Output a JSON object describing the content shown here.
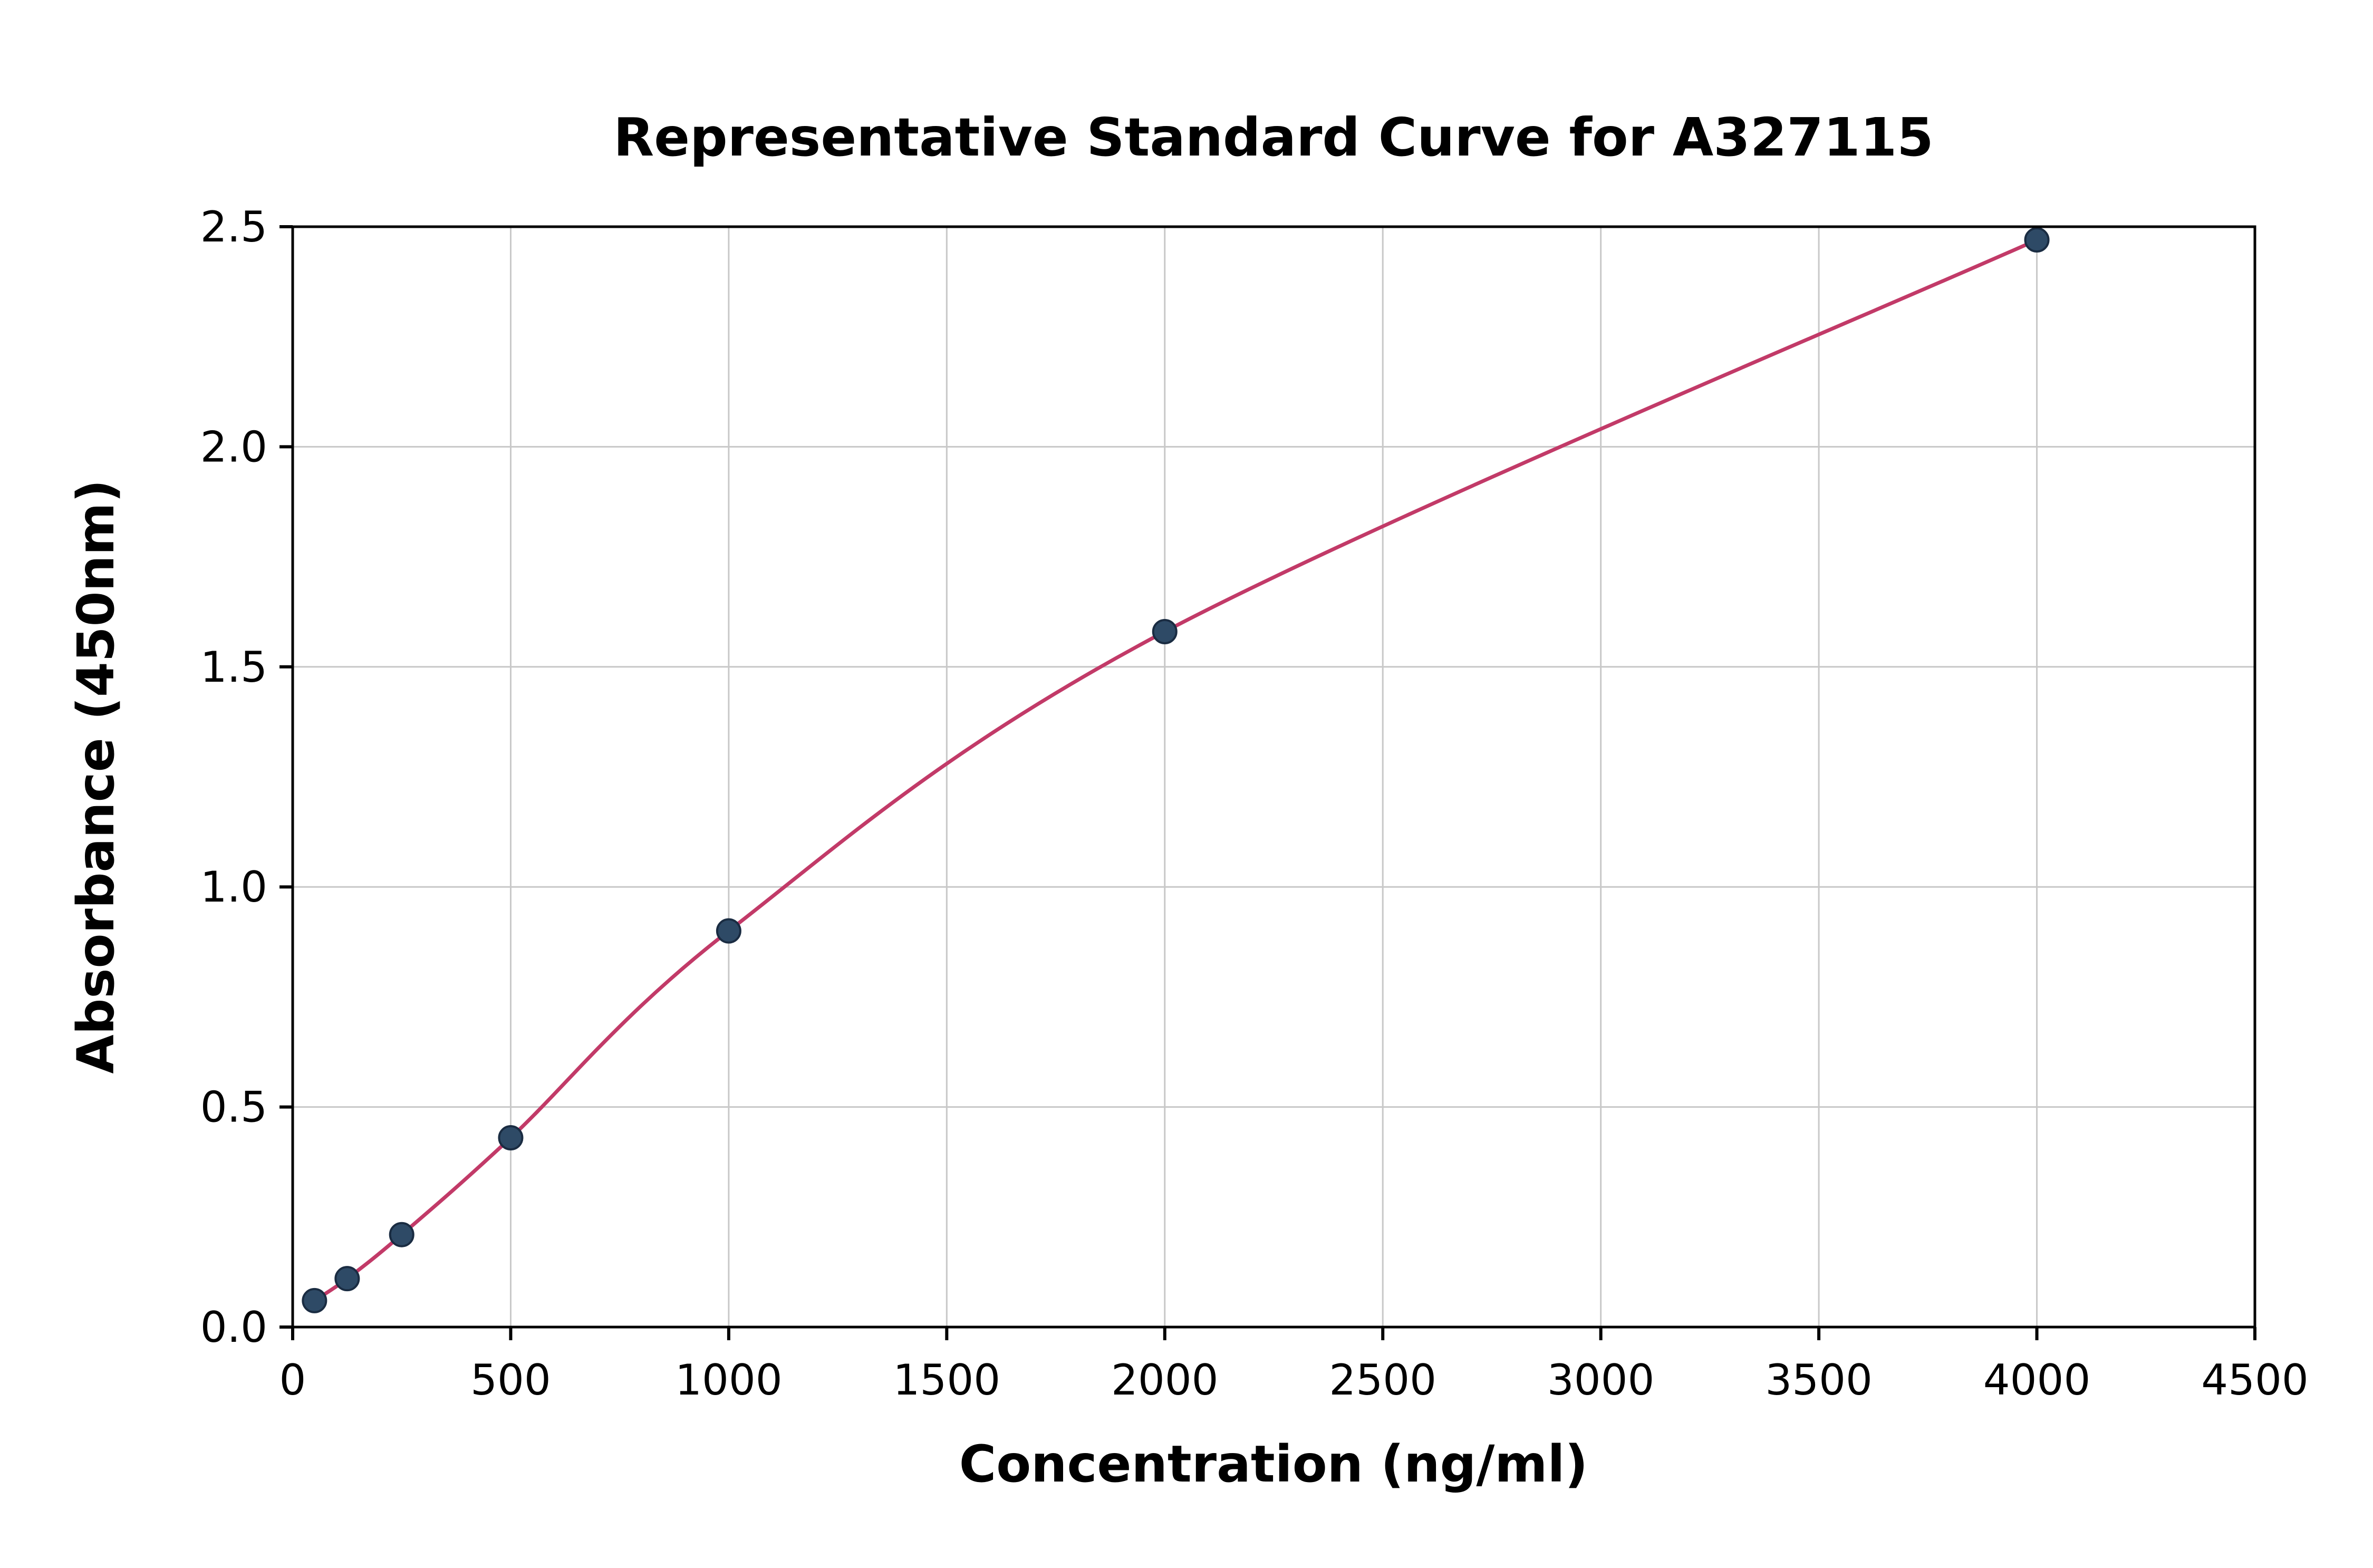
{
  "chart": {
    "title": "Representative Standard Curve for A327115",
    "xlabel": "Concentration (ng/ml)",
    "ylabel": "Absorbance (450nm)"
  },
  "chart_data": {
    "type": "scatter",
    "title": "Representative Standard Curve for A327115",
    "xlabel": "Concentration (ng/ml)",
    "ylabel": "Absorbance (450nm)",
    "x": [
      50,
      125,
      250,
      500,
      1000,
      2000,
      4000
    ],
    "y": [
      0.06,
      0.11,
      0.21,
      0.43,
      0.9,
      1.58,
      2.47
    ],
    "xlim": [
      0,
      4500
    ],
    "ylim": [
      0,
      2.5
    ],
    "xticks": [
      0,
      500,
      1000,
      1500,
      2000,
      2500,
      3000,
      3500,
      4000,
      4500
    ],
    "yticks": [
      0.0,
      0.5,
      1.0,
      1.5,
      2.0,
      2.5
    ],
    "grid": true,
    "legend_position": "none",
    "line_style": "smooth-curve-through-points",
    "colors": {
      "marker_fill": "#2e4a66",
      "marker_edge": "#1a2c42",
      "line": "#c23a68",
      "grid": "#c8c8c8",
      "axis": "#000000",
      "background": "#ffffff"
    }
  }
}
